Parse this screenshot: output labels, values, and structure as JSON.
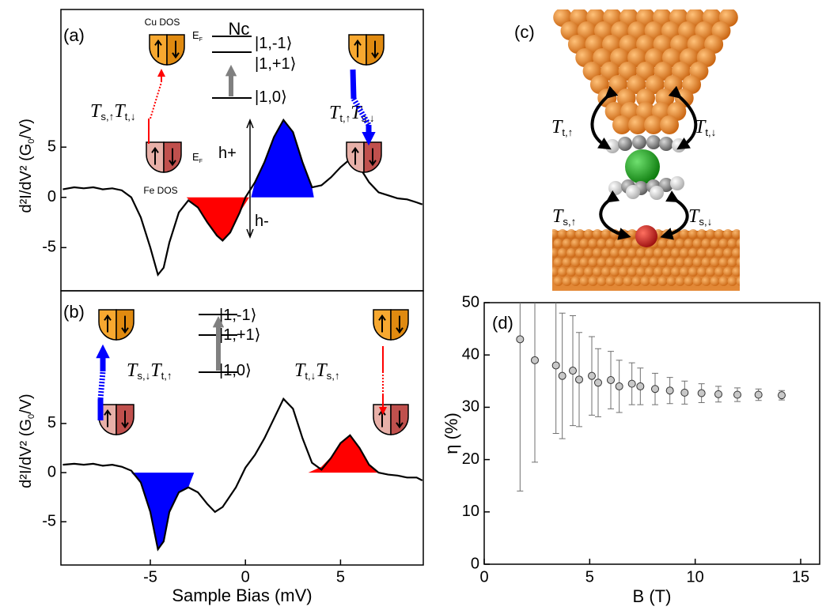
{
  "chart_data": [
    {
      "type": "line",
      "panel_label": "(a)",
      "color": "#000000",
      "ylabel": [
        "d²I/dV² (G",
        "0",
        "/V)"
      ],
      "xlim": [
        -9.7,
        9.35
      ],
      "ylim": [
        -9.3,
        18.7
      ],
      "yticks": [
        -5,
        0,
        5
      ],
      "x": [
        -9.6,
        -9,
        -8.5,
        -8,
        -7.5,
        -7,
        -6.5,
        -6,
        -5.5,
        -5,
        -4.6,
        -4.3,
        -4,
        -3.5,
        -3,
        -2.5,
        -2,
        -1.5,
        -1.2,
        -0.8,
        -0.3,
        0,
        0.5,
        1,
        1.5,
        2,
        2.5,
        3,
        3.5,
        4,
        4.5,
        5,
        5.5,
        6,
        6.5,
        7,
        7.5,
        8,
        8.5,
        9,
        9.3
      ],
      "values": [
        0.8,
        1.0,
        0.9,
        1.0,
        0.8,
        0.9,
        0.7,
        0,
        -2,
        -5,
        -7.7,
        -7,
        -4.5,
        -1.5,
        -0.3,
        -1,
        -2.5,
        -3.8,
        -4.3,
        -3.5,
        -1.5,
        0,
        1.5,
        3.5,
        6,
        7.7,
        6.5,
        3.5,
        1,
        1.2,
        2,
        3,
        3.8,
        3,
        1.5,
        0.5,
        0.2,
        -0.1,
        -0.2,
        -0.5,
        -0.7
      ],
      "fills": [
        {
          "color": "#ff0000",
          "x": [
            -3.1,
            -2.5,
            -2,
            -1.5,
            -1.2,
            -0.8,
            -0.3,
            0.2
          ],
          "values": [
            0,
            -1,
            -2.5,
            -3.8,
            -4.3,
            -3.5,
            -1.5,
            0
          ]
        },
        {
          "color": "#0000ff",
          "x": [
            0.3,
            0.5,
            1,
            1.5,
            2,
            2.5,
            3,
            3.5,
            3.6
          ],
          "values": [
            0,
            1.5,
            3.5,
            6,
            7.7,
            6.5,
            3.5,
            1,
            0
          ]
        }
      ],
      "annotations": [
        {
          "parts": [
            "Cu DOS"
          ]
        },
        {
          "parts": [
            "E",
            "F"
          ]
        },
        {
          "parts": [
            "Nc"
          ]
        },
        {
          "parts": [
            "|1,-1⟩"
          ]
        },
        {
          "parts": [
            "|1,+1⟩"
          ]
        },
        {
          "parts": [
            "|1,0⟩"
          ]
        },
        {
          "parts": [
            "T",
            "s,↑",
            "T",
            "t,↓"
          ]
        },
        {
          "parts": [
            "T",
            "t,↑",
            "T",
            "s,↓"
          ]
        },
        {
          "parts": [
            "E",
            "F"
          ]
        },
        {
          "parts": [
            "Fe DOS"
          ]
        },
        {
          "parts": [
            "h+"
          ]
        },
        {
          "parts": [
            "h-"
          ]
        }
      ]
    },
    {
      "type": "line",
      "panel_label": "(b)",
      "color": "#000000",
      "ylabel": [
        "d²I/dV² (G",
        "0",
        "/V)"
      ],
      "xlabel": "Sample Bias (mV)",
      "xlim": [
        -9.7,
        9.35
      ],
      "ylim": [
        -9.4,
        18.5
      ],
      "xticks": [
        -5,
        0,
        5
      ],
      "yticks": [
        -5,
        0,
        5
      ],
      "x": [
        -9.6,
        -9,
        -8.5,
        -8,
        -7.5,
        -7,
        -6.5,
        -6,
        -5.5,
        -5,
        -4.6,
        -4.3,
        -4,
        -3.5,
        -3,
        -2.5,
        -2,
        -1.6,
        -1.2,
        -0.5,
        0,
        0.5,
        1,
        1.5,
        2,
        2.5,
        3,
        3.5,
        4,
        4.5,
        5,
        5.5,
        6,
        6.5,
        7,
        7.5,
        8,
        8.5,
        9,
        9.3
      ],
      "values": [
        0.8,
        0.9,
        0.8,
        0.9,
        0.7,
        0.8,
        0.6,
        0.2,
        -1,
        -4,
        -7.8,
        -7,
        -4,
        -2,
        -1.5,
        -2,
        -3.2,
        -4,
        -3.5,
        -1.5,
        0.5,
        1.8,
        3.5,
        5.5,
        7.5,
        6.5,
        3.5,
        1,
        0.3,
        1.5,
        3,
        3.8,
        2.5,
        0.8,
        0,
        -0.2,
        -0.3,
        -0.5,
        -0.5,
        -0.8
      ],
      "fills": [
        {
          "color": "#0000ff",
          "x": [
            -6,
            -5.5,
            -5,
            -4.6,
            -4.3,
            -4,
            -3.5,
            -3,
            -2.7
          ],
          "values": [
            0,
            -1,
            -4,
            -7.8,
            -7,
            -4,
            -2,
            -1.5,
            0
          ]
        },
        {
          "color": "#ff0000",
          "x": [
            3.3,
            4,
            4.5,
            5,
            5.5,
            6,
            6.5,
            7,
            7.4
          ],
          "values": [
            0,
            0.6,
            1.6,
            3,
            3.8,
            2.5,
            0.8,
            0,
            0
          ]
        }
      ],
      "annotations": [
        {
          "parts": [
            "|1,-1⟩"
          ]
        },
        {
          "parts": [
            "|1,+1⟩"
          ]
        },
        {
          "parts": [
            "|1,0⟩"
          ]
        },
        {
          "parts": [
            "T",
            "s,↓",
            "T",
            "t,↑"
          ]
        },
        {
          "parts": [
            "T",
            "t,↓",
            "T",
            "s,↑"
          ]
        }
      ]
    },
    {
      "type": "image",
      "panel_label": "(c)",
      "annotations": [
        {
          "parts": [
            "T",
            "t,↑"
          ]
        },
        {
          "parts": [
            "T",
            "t,↓"
          ]
        },
        {
          "parts": [
            "T",
            "s,↑"
          ]
        },
        {
          "parts": [
            "T",
            "s,↓"
          ]
        }
      ]
    },
    {
      "type": "scatter",
      "panel_label": "(d)",
      "color": "#c8c8c8",
      "xlabel": "B (T)",
      "ylabel": "η (%)",
      "xlim": [
        0,
        15.9
      ],
      "ylim": [
        0,
        50
      ],
      "xticks": [
        0,
        5,
        10,
        15
      ],
      "yticks": [
        0,
        10,
        20,
        30,
        40,
        50
      ],
      "x": [
        1.7,
        2.4,
        3.4,
        3.7,
        4.2,
        4.5,
        5.1,
        5.4,
        6.0,
        6.4,
        7.0,
        7.4,
        8.1,
        8.8,
        9.5,
        10.3,
        11.1,
        12.0,
        13.0,
        14.1
      ],
      "values": [
        43,
        39,
        38,
        36,
        37,
        35.3,
        36,
        34.7,
        35.2,
        34,
        34.5,
        34,
        33.5,
        33.2,
        32.8,
        32.7,
        32.5,
        32.4,
        32.4,
        32.3
      ],
      "errors": [
        29,
        19.5,
        13,
        12,
        10.5,
        9,
        7.5,
        6.5,
        5.5,
        5,
        4,
        3.5,
        3,
        2.5,
        2.2,
        1.8,
        1.5,
        1.3,
        1.1,
        0.9
      ]
    }
  ]
}
